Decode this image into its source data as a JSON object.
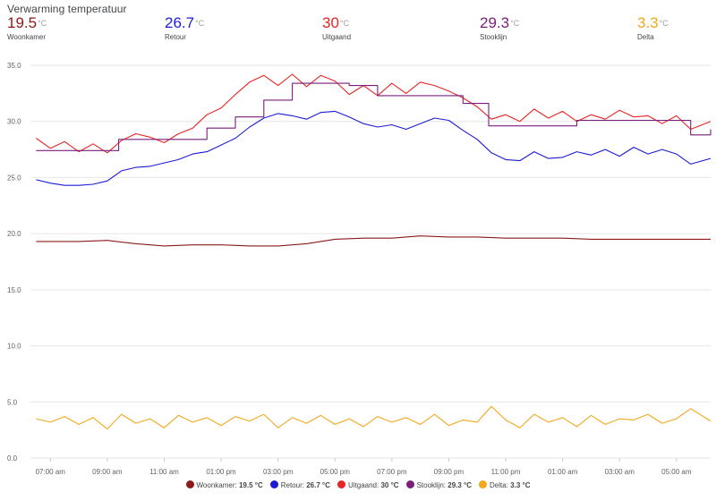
{
  "card": {
    "title": "Verwarming temperatuur"
  },
  "stats": [
    {
      "value": "19.5",
      "unit": "°C",
      "name": "Woonkamer",
      "color": "#8b1a1a"
    },
    {
      "value": "26.7",
      "unit": "°C",
      "name": "Retour",
      "color": "#1b1bd6"
    },
    {
      "value": "30",
      "unit": "°C",
      "name": "Uitgaand",
      "color": "#e82424"
    },
    {
      "value": "29.3",
      "unit": "°C",
      "name": "Stooklijn",
      "color": "#7a1e7a"
    },
    {
      "value": "3.3",
      "unit": "°C",
      "name": "Delta",
      "color": "#f2a81d"
    }
  ],
  "chart_data": {
    "type": "line",
    "ylim": [
      0,
      35
    ],
    "yticks": [
      "0.0",
      "5.0",
      "10.0",
      "15.0",
      "20.0",
      "25.0",
      "30.0",
      "35.0"
    ],
    "xticks": [
      "07:00 am",
      "09:00 am",
      "11:00 am",
      "01:00 pm",
      "03:00 pm",
      "05:00 pm",
      "07:00 pm",
      "09:00 pm",
      "11:00 pm",
      "01:00 am",
      "03:00 am",
      "05:00 am"
    ],
    "grid": true,
    "legend_position": "bottom",
    "series": [
      {
        "name": "Woonkamer",
        "color": "#8b1a1a",
        "x": [
          6.5,
          8,
          9,
          10,
          11,
          12,
          13,
          14,
          15,
          16,
          17,
          18,
          19,
          20,
          21,
          22,
          23,
          24,
          25,
          26,
          27,
          28,
          29,
          30.2
        ],
        "y": [
          19.3,
          19.3,
          19.4,
          19.1,
          18.9,
          19.0,
          19.0,
          18.9,
          18.9,
          19.1,
          19.5,
          19.6,
          19.6,
          19.8,
          19.7,
          19.7,
          19.6,
          19.6,
          19.6,
          19.5,
          19.5,
          19.5,
          19.5,
          19.5
        ]
      },
      {
        "name": "Retour",
        "color": "#1b1bd6",
        "x": [
          6.5,
          7,
          7.5,
          8,
          8.5,
          9,
          9.5,
          10,
          10.5,
          11,
          11.5,
          12,
          12.5,
          13,
          13.5,
          14,
          14.5,
          15,
          15.5,
          16,
          16.5,
          17,
          17.5,
          18,
          18.5,
          19,
          19.5,
          20,
          20.5,
          21,
          21.5,
          22,
          22.5,
          23,
          23.5,
          24,
          24.5,
          25,
          25.5,
          26,
          26.5,
          27,
          27.5,
          28,
          28.5,
          29,
          29.5,
          30.2
        ],
        "y": [
          24.8,
          24.5,
          24.3,
          24.3,
          24.4,
          24.7,
          25.6,
          25.9,
          26.0,
          26.3,
          26.6,
          27.1,
          27.3,
          27.9,
          28.5,
          29.5,
          30.3,
          30.7,
          30.5,
          30.2,
          30.8,
          30.9,
          30.4,
          29.8,
          29.5,
          29.7,
          29.3,
          29.8,
          30.3,
          30.1,
          29.2,
          28.4,
          27.2,
          26.6,
          26.5,
          27.3,
          26.7,
          26.8,
          27.3,
          27.0,
          27.5,
          26.9,
          27.7,
          27.1,
          27.5,
          27.1,
          26.2,
          26.7
        ]
      },
      {
        "name": "Uitgaand",
        "color": "#e82424",
        "x": [
          6.5,
          7,
          7.5,
          8,
          8.5,
          9,
          9.5,
          10,
          10.5,
          11,
          11.5,
          12,
          12.5,
          13,
          13.5,
          14,
          14.5,
          15,
          15.5,
          16,
          16.5,
          17,
          17.5,
          18,
          18.5,
          19,
          19.5,
          20,
          20.5,
          21,
          21.5,
          22,
          22.5,
          23,
          23.5,
          24,
          24.5,
          25,
          25.5,
          26,
          26.5,
          27,
          27.5,
          28,
          28.5,
          29,
          29.5,
          30.2
        ],
        "y": [
          28.5,
          27.6,
          28.2,
          27.3,
          28.0,
          27.2,
          28.3,
          28.9,
          28.6,
          28.1,
          28.9,
          29.4,
          30.6,
          31.2,
          32.4,
          33.5,
          34.1,
          33.2,
          34.2,
          33.1,
          34.1,
          33.6,
          32.4,
          33.2,
          32.3,
          33.4,
          32.5,
          33.5,
          33.2,
          32.7,
          32.1,
          31.3,
          30.2,
          30.6,
          30.0,
          31.1,
          30.3,
          30.9,
          30.0,
          30.6,
          30.2,
          31.0,
          30.4,
          30.5,
          29.8,
          30.5,
          29.3,
          30.0
        ]
      },
      {
        "name": "Stooklijn",
        "color": "#7a1e7a",
        "x": [
          6.5,
          7.5,
          8.5,
          9.4,
          10.5,
          11.5,
          12.5,
          13.5,
          14.5,
          15.5,
          16.5,
          17.5,
          18.5,
          19.5,
          20.5,
          21.5,
          22.4,
          23.5,
          24.5,
          25.5,
          26.5,
          27.5,
          28.5,
          29.5,
          30.2
        ],
        "y": [
          27.4,
          27.4,
          27.4,
          28.4,
          28.4,
          28.4,
          29.4,
          30.4,
          31.9,
          33.4,
          33.4,
          33.2,
          32.3,
          32.3,
          32.3,
          31.6,
          29.6,
          29.6,
          29.6,
          30.1,
          30.1,
          30.1,
          30.1,
          28.8,
          29.3
        ]
      },
      {
        "name": "Delta",
        "color": "#f2a81d",
        "x": [
          6.5,
          7,
          7.5,
          8,
          8.5,
          9,
          9.5,
          10,
          10.5,
          11,
          11.5,
          12,
          12.5,
          13,
          13.5,
          14,
          14.5,
          15,
          15.5,
          16,
          16.5,
          17,
          17.5,
          18,
          18.5,
          19,
          19.5,
          20,
          20.5,
          21,
          21.5,
          22,
          22.5,
          23,
          23.5,
          24,
          24.5,
          25,
          25.5,
          26,
          26.5,
          27,
          27.5,
          28,
          28.5,
          29,
          29.5,
          30.2
        ],
        "y": [
          3.5,
          3.2,
          3.7,
          3.0,
          3.6,
          2.6,
          3.9,
          3.1,
          3.5,
          2.7,
          3.8,
          3.2,
          3.6,
          2.9,
          3.7,
          3.3,
          3.9,
          2.7,
          3.6,
          3.1,
          3.8,
          3.0,
          3.5,
          2.8,
          3.7,
          3.2,
          3.6,
          3.0,
          3.9,
          2.9,
          3.4,
          3.2,
          4.6,
          3.4,
          2.7,
          3.9,
          3.2,
          3.6,
          2.8,
          3.8,
          3.0,
          3.5,
          3.4,
          3.9,
          3.1,
          3.5,
          4.4,
          3.3
        ]
      }
    ]
  },
  "legend": [
    {
      "name": "Woonkamer",
      "value": "19.5 °C",
      "color": "#8b1a1a"
    },
    {
      "name": "Retour",
      "value": "26.7 °C",
      "color": "#1b1bd6"
    },
    {
      "name": "Uitgaand",
      "value": "30 °C",
      "color": "#e82424"
    },
    {
      "name": "Stooklijn",
      "value": "29.3 °C",
      "color": "#7a1e7a"
    },
    {
      "name": "Delta",
      "value": "3.3 °C",
      "color": "#f2a81d"
    }
  ]
}
